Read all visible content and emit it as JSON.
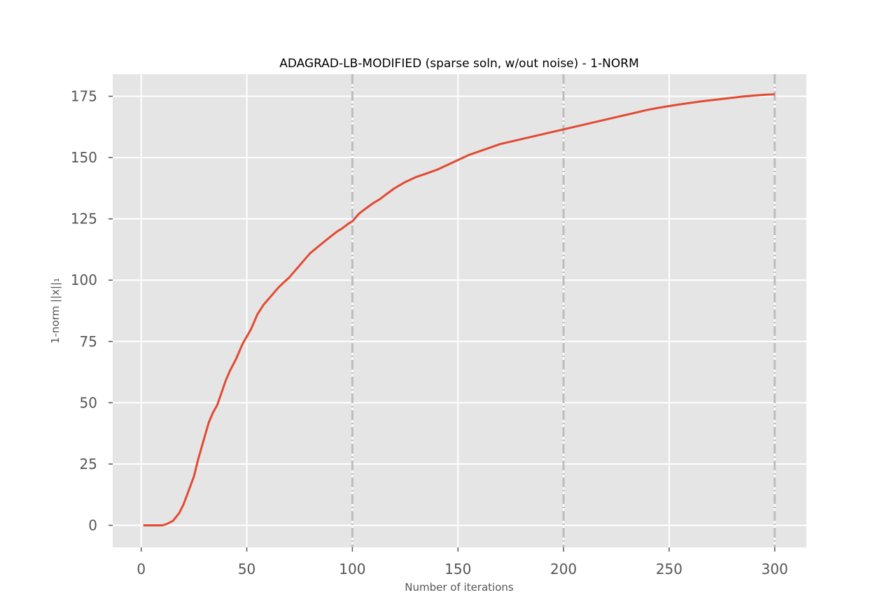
{
  "chart_data": {
    "type": "line",
    "title": "ADAGRAD-LB-MODIFIED (sparse soln, w/out noise) - 1-NORM",
    "xlabel": "Number of iterations",
    "ylabel": "1-norm ||x||₁",
    "xlim": [
      -13.5,
      315
    ],
    "ylim": [
      -9,
      184
    ],
    "xticks": [
      0,
      50,
      100,
      150,
      200,
      250,
      300
    ],
    "yticks": [
      0,
      25,
      50,
      75,
      100,
      125,
      150,
      175
    ],
    "grid": true,
    "vertical_lines": [
      100,
      200,
      300
    ],
    "series": [
      {
        "color": "#e24a33",
        "x": [
          1,
          5,
          10,
          12,
          15,
          18,
          20,
          22,
          25,
          27,
          30,
          32,
          34,
          36,
          38,
          40,
          42,
          45,
          48,
          50,
          52,
          55,
          58,
          60,
          62,
          65,
          68,
          70,
          72,
          75,
          78,
          80,
          85,
          90,
          93,
          95,
          98,
          100,
          103,
          106,
          110,
          113,
          116,
          120,
          125,
          130,
          135,
          140,
          145,
          150,
          155,
          160,
          165,
          170,
          175,
          180,
          185,
          190,
          195,
          200,
          205,
          210,
          215,
          220,
          225,
          230,
          235,
          240,
          245,
          250,
          255,
          260,
          265,
          270,
          275,
          280,
          285,
          290,
          295,
          300
        ],
        "values": [
          0,
          0,
          0,
          0.5,
          1.8,
          5,
          8.5,
          13,
          20,
          27,
          36,
          42,
          46,
          49,
          54,
          59,
          63,
          68,
          74,
          77,
          80,
          86,
          90,
          92,
          94,
          97,
          99.5,
          101,
          103,
          106,
          109,
          111,
          114.5,
          118,
          120,
          121,
          123,
          124,
          127,
          129,
          131.5,
          133,
          135,
          137.5,
          140,
          142,
          143.5,
          145,
          147,
          149,
          151,
          152.5,
          154,
          155.5,
          156.5,
          157.5,
          158.5,
          159.5,
          160.5,
          161.5,
          162.5,
          163.5,
          164.5,
          165.5,
          166.5,
          167.5,
          168.5,
          169.5,
          170.3,
          171,
          171.7,
          172.3,
          172.9,
          173.4,
          173.9,
          174.4,
          174.9,
          175.3,
          175.6,
          175.8
        ]
      }
    ]
  }
}
